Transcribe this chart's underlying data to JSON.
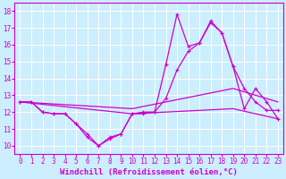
{
  "xlabel": "Windchill (Refroidissement éolien,°C)",
  "ylabel": "",
  "bg_color": "#cceeff",
  "line_color": "#cc00cc",
  "grid_color": "#ffffff",
  "ylim": [
    9.5,
    18.5
  ],
  "xlim": [
    -0.5,
    23.5
  ],
  "yticks": [
    10,
    11,
    12,
    13,
    14,
    15,
    16,
    17,
    18
  ],
  "xticks": [
    0,
    1,
    2,
    3,
    4,
    5,
    6,
    7,
    8,
    9,
    10,
    11,
    12,
    13,
    14,
    15,
    16,
    17,
    18,
    19,
    20,
    21,
    22,
    23
  ],
  "series": [
    {
      "x": [
        0,
        1,
        2,
        3,
        4,
        5,
        6,
        7,
        8,
        9,
        10,
        11,
        12,
        13,
        14,
        15,
        16,
        17,
        18,
        19,
        20,
        21,
        22,
        23
      ],
      "y": [
        12.6,
        12.6,
        12.0,
        11.9,
        11.9,
        11.3,
        10.7,
        10.0,
        10.5,
        10.7,
        11.9,
        12.0,
        12.0,
        14.8,
        17.8,
        15.9,
        16.1,
        17.4,
        16.7,
        14.7,
        13.4,
        12.6,
        12.1,
        12.1
      ],
      "marker": "+"
    },
    {
      "x": [
        0,
        1,
        2,
        3,
        4,
        5,
        6,
        7,
        8,
        9,
        10,
        11,
        12,
        13,
        14,
        15,
        16,
        17,
        18,
        19,
        20,
        21,
        22,
        23
      ],
      "y": [
        12.6,
        12.6,
        12.0,
        11.9,
        11.9,
        11.3,
        10.5,
        10.0,
        10.4,
        10.7,
        11.9,
        11.9,
        12.0,
        12.8,
        14.5,
        15.6,
        16.1,
        17.3,
        16.7,
        14.7,
        12.2,
        13.4,
        12.6,
        11.6
      ],
      "marker": "+"
    },
    {
      "x": [
        0,
        10,
        19,
        23
      ],
      "y": [
        12.6,
        12.2,
        13.4,
        12.6
      ],
      "marker": null
    },
    {
      "x": [
        0,
        10,
        19,
        23
      ],
      "y": [
        12.6,
        11.9,
        12.2,
        11.6
      ],
      "marker": null
    }
  ],
  "marker_size": 3,
  "line_width": 0.9,
  "font_family": "monospace",
  "xlabel_fontsize": 6.5,
  "tick_fontsize": 5.5
}
